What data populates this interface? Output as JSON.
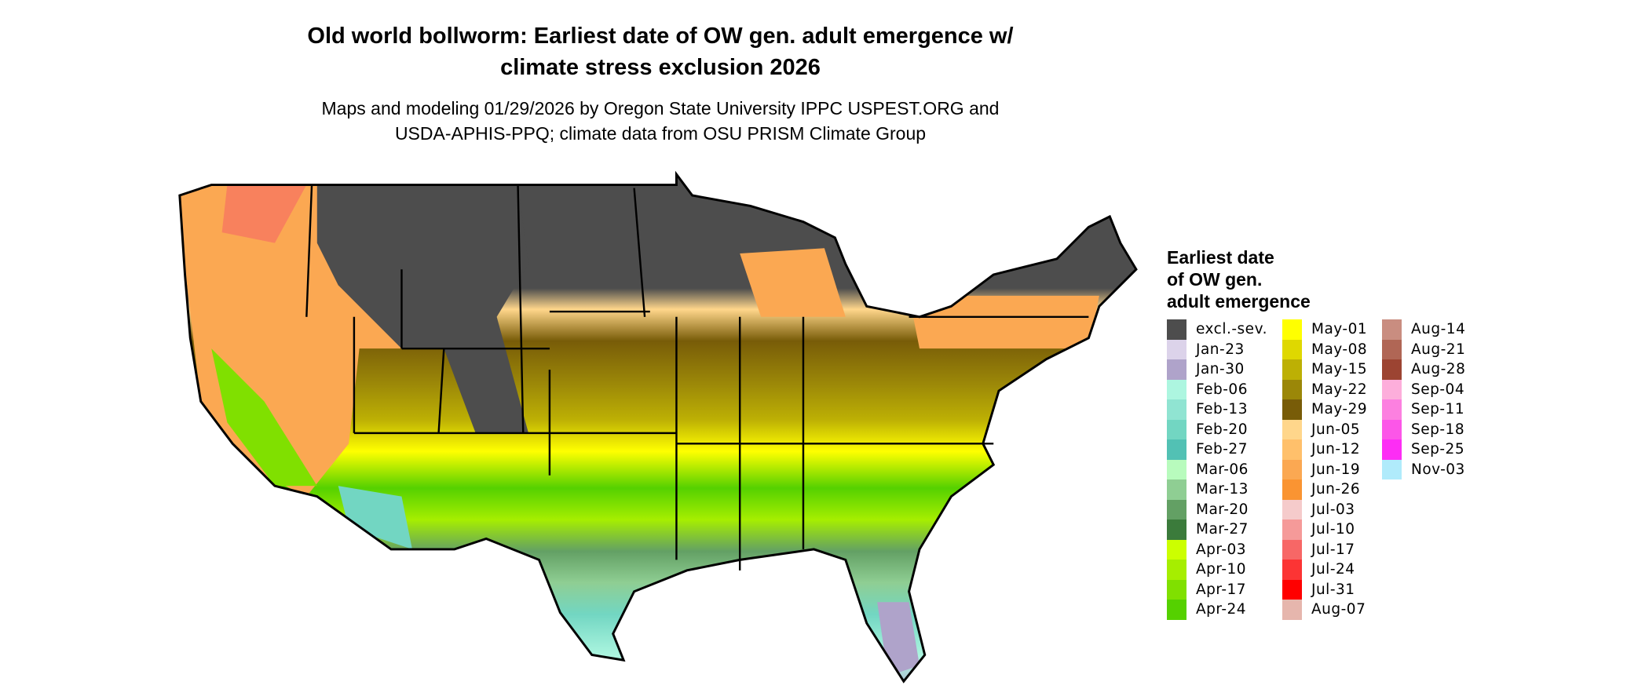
{
  "title_lines": [
    "Old world bollworm: Earliest date of OW gen. adult emergence w/",
    "climate stress exclusion 2026"
  ],
  "subtitle_lines": [
    "Maps and modeling 01/29/2026 by Oregon State University IPPC USPEST.ORG and",
    "USDA-APHIS-PPQ; climate data from OSU PRISM Climate Group"
  ],
  "legend": {
    "title_lines": [
      "Earliest date",
      "of OW gen.",
      "adult emergence"
    ],
    "items": [
      {
        "label": "excl.-sev.",
        "color": "#4d4d4d"
      },
      {
        "label": "Jan-23",
        "color": "#dcd3ea"
      },
      {
        "label": "Jan-30",
        "color": "#afa3ca"
      },
      {
        "label": "Feb-06",
        "color": "#adf6e0"
      },
      {
        "label": "Feb-13",
        "color": "#90e4d2"
      },
      {
        "label": "Feb-20",
        "color": "#72d6c2"
      },
      {
        "label": "Feb-27",
        "color": "#52c1b4"
      },
      {
        "label": "Mar-06",
        "color": "#b8fbbd"
      },
      {
        "label": "Mar-13",
        "color": "#8fce93"
      },
      {
        "label": "Mar-20",
        "color": "#63a064"
      },
      {
        "label": "Mar-27",
        "color": "#3b7b3b"
      },
      {
        "label": "Apr-03",
        "color": "#ccff00"
      },
      {
        "label": "Apr-10",
        "color": "#a6ee00"
      },
      {
        "label": "Apr-17",
        "color": "#80e000"
      },
      {
        "label": "Apr-24",
        "color": "#55d100"
      },
      {
        "label": "May-01",
        "color": "#ffff00"
      },
      {
        "label": "May-08",
        "color": "#dfd800"
      },
      {
        "label": "May-15",
        "color": "#bdb004"
      },
      {
        "label": "May-22",
        "color": "#9b8708"
      },
      {
        "label": "May-29",
        "color": "#785c08"
      },
      {
        "label": "Jun-05",
        "color": "#ffd68b"
      },
      {
        "label": "Jun-12",
        "color": "#ffc06b"
      },
      {
        "label": "Jun-19",
        "color": "#fba852"
      },
      {
        "label": "Jun-26",
        "color": "#fa9432"
      },
      {
        "label": "Jul-03",
        "color": "#f5cbcb"
      },
      {
        "label": "Jul-10",
        "color": "#f59a99"
      },
      {
        "label": "Jul-17",
        "color": "#f76766"
      },
      {
        "label": "Jul-24",
        "color": "#fc3434"
      },
      {
        "label": "Jul-31",
        "color": "#ff0000"
      },
      {
        "label": "Aug-07",
        "color": "#e6b6ad"
      },
      {
        "label": "Aug-14",
        "color": "#c98d80"
      },
      {
        "label": "Aug-21",
        "color": "#b06655"
      },
      {
        "label": "Aug-28",
        "color": "#9c4432"
      },
      {
        "label": "Sep-04",
        "color": "#fdaedb"
      },
      {
        "label": "Sep-11",
        "color": "#fc80e0"
      },
      {
        "label": "Sep-18",
        "color": "#fc56e8"
      },
      {
        "label": "Sep-25",
        "color": "#fd2df5"
      },
      {
        "label": "Nov-03",
        "color": "#b0ebfb"
      }
    ]
  }
}
